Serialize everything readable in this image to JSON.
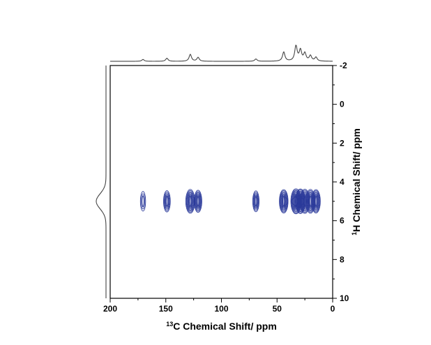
{
  "chart_data": {
    "type": "heatmap",
    "subtype": "2D NMR contour plot with projections",
    "xlabel": {
      "sup": "13",
      "text": "C Chemical Shift/ ppm"
    },
    "ylabel": {
      "sup": "1",
      "text": "H Chemical Shift/ ppm"
    },
    "x_ticks": [
      "200",
      "150",
      "100",
      "50",
      "0"
    ],
    "y_ticks": [
      "-2",
      "0",
      "2",
      "4",
      "6",
      "8",
      "10"
    ],
    "xlim": [
      200,
      0
    ],
    "ylim": [
      -2,
      10
    ],
    "contour_color": "#2b3a9a",
    "peaks": [
      {
        "c": 170.5,
        "h": 5.0,
        "intensity": 0.35
      },
      {
        "c": 149.0,
        "h": 5.0,
        "intensity": 0.55
      },
      {
        "c": 128.0,
        "h": 5.0,
        "intensity": 0.85
      },
      {
        "c": 121.0,
        "h": 5.0,
        "intensity": 0.65
      },
      {
        "c": 69.0,
        "h": 5.0,
        "intensity": 0.5
      },
      {
        "c": 44.0,
        "h": 5.0,
        "intensity": 0.8
      },
      {
        "c": 33.0,
        "h": 5.0,
        "intensity": 1.0
      },
      {
        "c": 29.0,
        "h": 5.0,
        "intensity": 0.95
      },
      {
        "c": 25.0,
        "h": 5.0,
        "intensity": 0.9
      },
      {
        "c": 20.0,
        "h": 5.0,
        "intensity": 0.85
      },
      {
        "c": 15.0,
        "h": 5.0,
        "intensity": 0.8
      }
    ],
    "projection_c": [
      {
        "c": 170.5,
        "height": 0.12
      },
      {
        "c": 149.0,
        "height": 0.2
      },
      {
        "c": 128.0,
        "height": 0.45
      },
      {
        "c": 121.0,
        "height": 0.25
      },
      {
        "c": 69.0,
        "height": 0.15
      },
      {
        "c": 44.0,
        "height": 0.6
      },
      {
        "c": 33.0,
        "height": 1.0
      },
      {
        "c": 29.0,
        "height": 0.7
      },
      {
        "c": 25.0,
        "height": 0.5
      },
      {
        "c": 20.0,
        "height": 0.35
      },
      {
        "c": 15.0,
        "height": 0.25
      }
    ],
    "projection_h": [
      {
        "h": 5.0,
        "height": 1.0
      }
    ]
  }
}
